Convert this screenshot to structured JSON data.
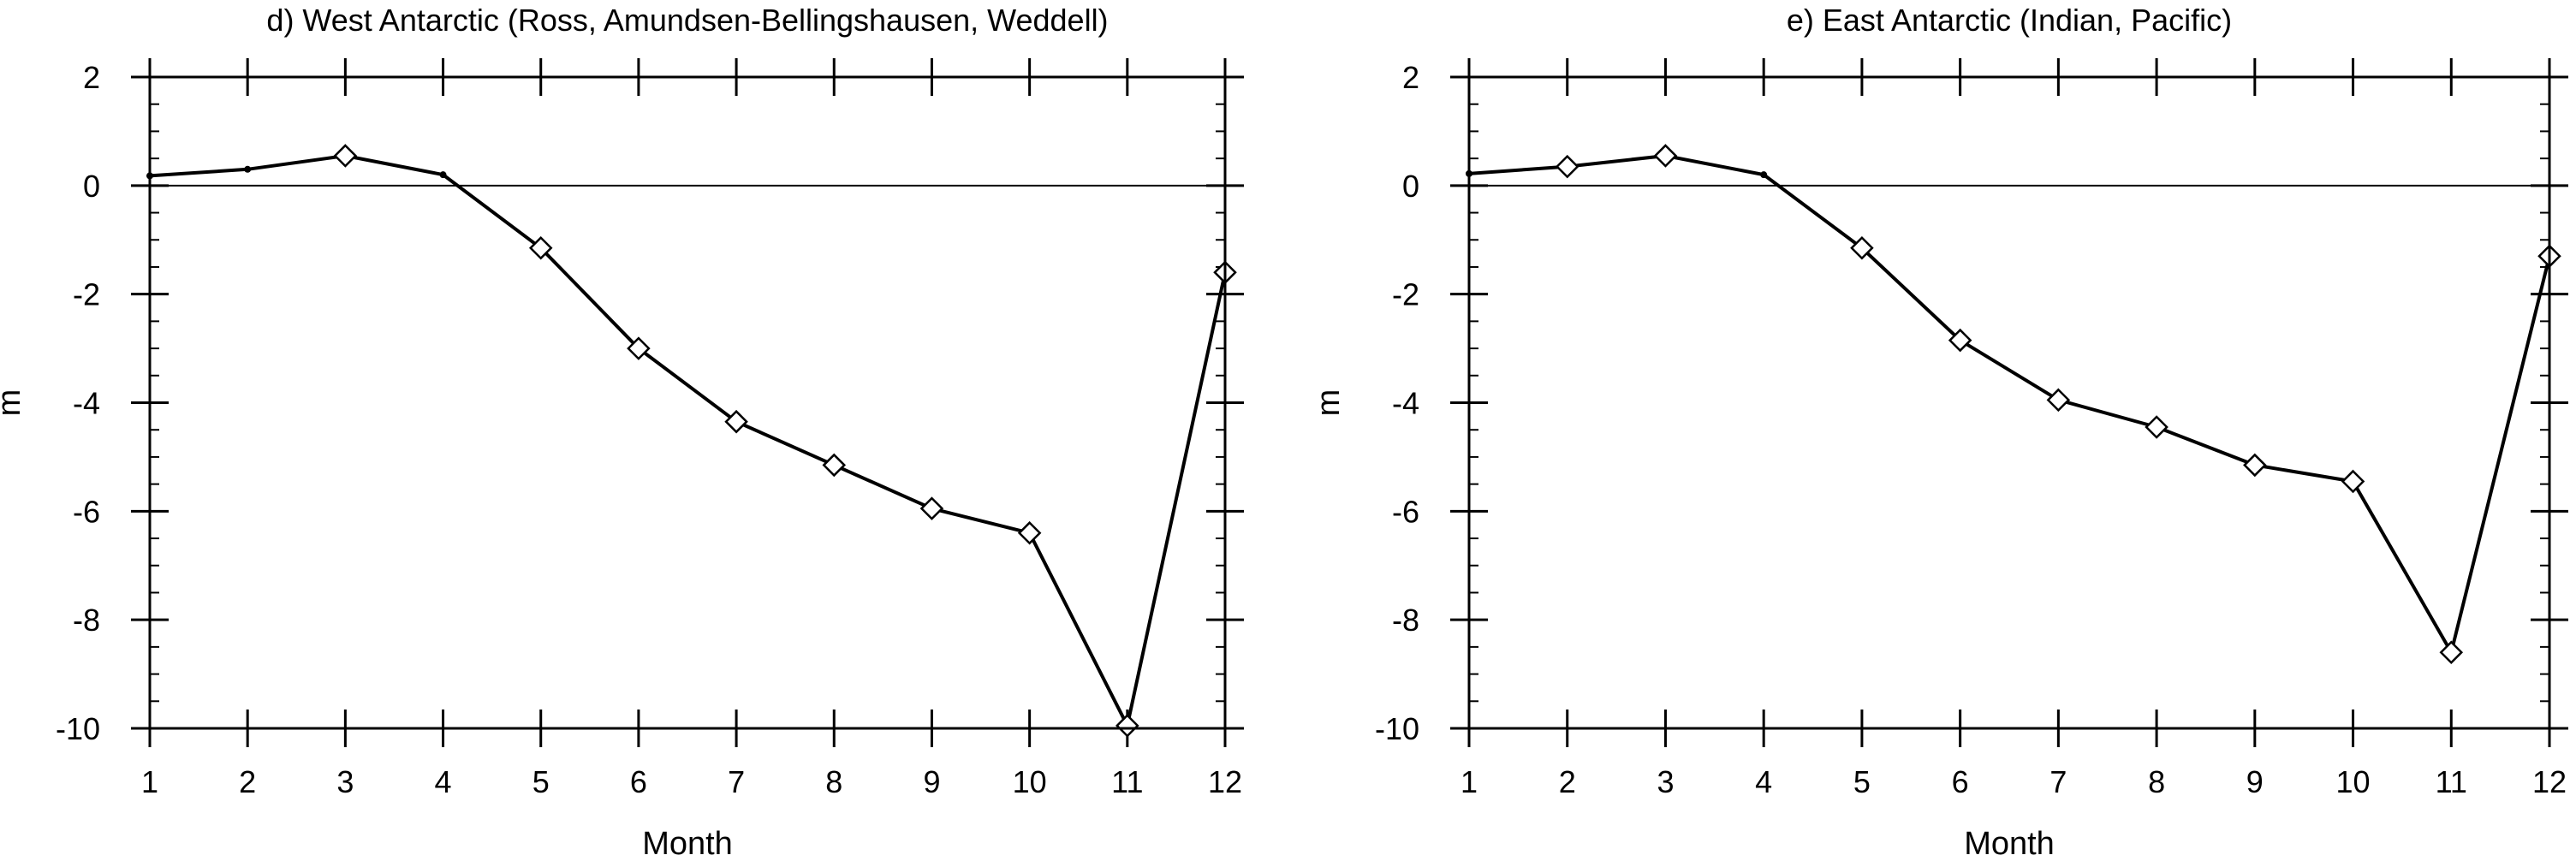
{
  "chart_data": [
    {
      "type": "line",
      "title": "d) West Antarctic (Ross, Amundsen-Bellingshausen, Weddell)",
      "xlabel": "Month",
      "ylabel": "m",
      "xlim": [
        1,
        12
      ],
      "ylim": [
        -10,
        2
      ],
      "x_ticks": [
        "1",
        "2",
        "3",
        "4",
        "5",
        "6",
        "7",
        "8",
        "9",
        "10",
        "11",
        "12"
      ],
      "y_ticks": [
        "2",
        "0",
        "-2",
        "-4",
        "-6",
        "-8",
        "-10"
      ],
      "reference_line_y": 0,
      "grid": false,
      "series": [
        {
          "x": [
            1,
            2,
            3,
            4,
            5,
            6,
            7,
            8,
            9,
            10,
            11,
            12
          ],
          "values": [
            0.18,
            0.3,
            0.55,
            0.2,
            -1.15,
            -3.0,
            -4.35,
            -5.15,
            -5.95,
            -6.4,
            -9.95,
            -1.6
          ],
          "markers": [
            "dot",
            "dot",
            "diamond",
            "dot",
            "diamond",
            "diamond",
            "diamond",
            "diamond",
            "diamond",
            "diamond",
            "diamond",
            "diamond"
          ]
        }
      ]
    },
    {
      "type": "line",
      "title": "e) East Antarctic (Indian, Pacific)",
      "xlabel": "Month",
      "ylabel": "m",
      "xlim": [
        1,
        12
      ],
      "ylim": [
        -10,
        2
      ],
      "x_ticks": [
        "1",
        "2",
        "3",
        "4",
        "5",
        "6",
        "7",
        "8",
        "9",
        "10",
        "11",
        "12"
      ],
      "y_ticks": [
        "2",
        "0",
        "-2",
        "-4",
        "-6",
        "-8",
        "-10"
      ],
      "reference_line_y": 0,
      "grid": false,
      "series": [
        {
          "x": [
            1,
            2,
            3,
            4,
            5,
            6,
            7,
            8,
            9,
            10,
            11,
            12
          ],
          "values": [
            0.22,
            0.35,
            0.55,
            0.2,
            -1.15,
            -2.85,
            -3.95,
            -4.45,
            -5.15,
            -5.45,
            -8.6,
            -1.3
          ],
          "markers": [
            "dot",
            "diamond",
            "diamond",
            "dot",
            "diamond",
            "diamond",
            "diamond",
            "diamond",
            "diamond",
            "diamond",
            "diamond",
            "diamond"
          ]
        }
      ]
    }
  ]
}
